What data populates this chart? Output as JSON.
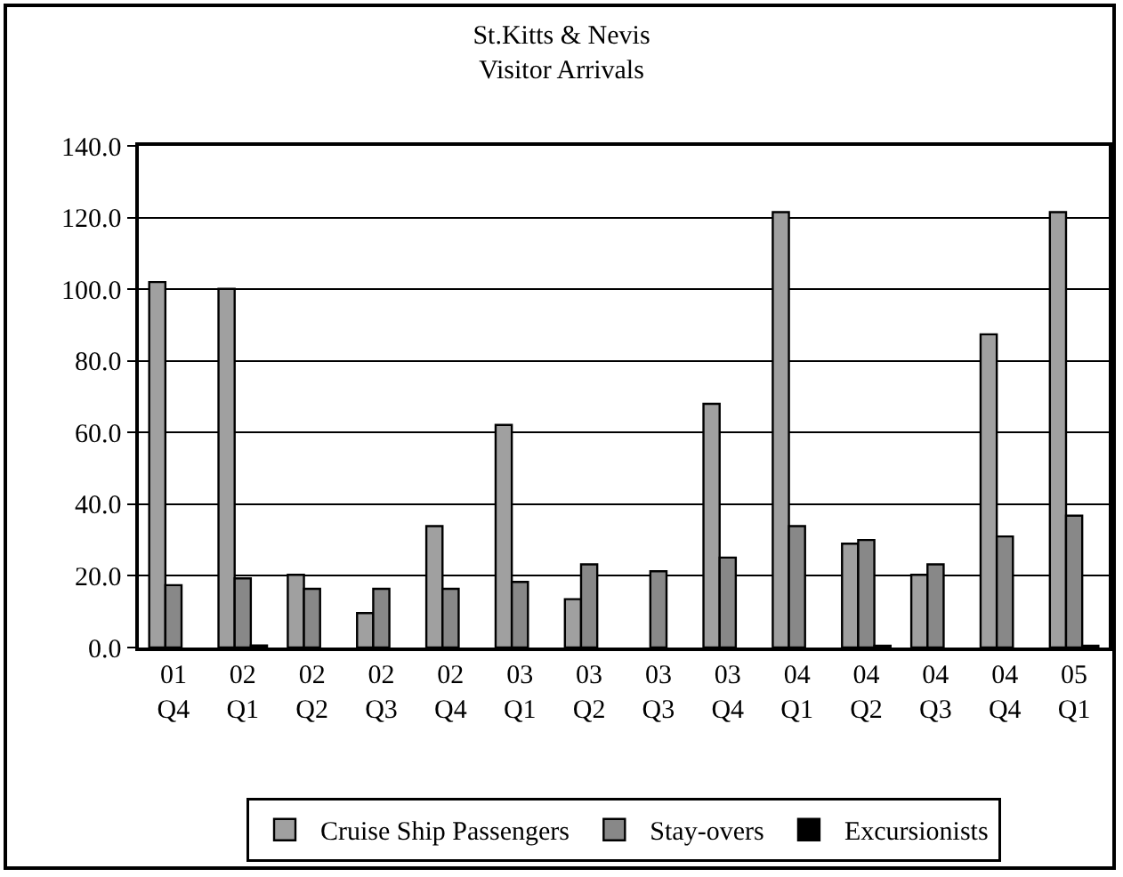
{
  "chart_data": {
    "type": "bar",
    "title": "St.Kitts & Nevis",
    "subtitle": "Visitor Arrivals",
    "categories": [
      "01 Q4",
      "02 Q1",
      "02 Q2",
      "02 Q3",
      "02 Q4",
      "03 Q1",
      "03 Q2",
      "03 Q3",
      "03 Q4",
      "04 Q1",
      "04 Q2",
      "04 Q3",
      "04 Q4",
      "05 Q1"
    ],
    "series": [
      {
        "name": "Cruise Ship Passengers",
        "color": "#a0a0a0",
        "values": [
          102,
          100.1,
          20.3,
          9.6,
          33.9,
          62.1,
          13.5,
          null,
          68,
          121.5,
          29,
          20.3,
          87.4,
          121.5
        ]
      },
      {
        "name": "Stay-overs",
        "color": "#888888",
        "values": [
          17.4,
          19.3,
          16.4,
          16.4,
          16.4,
          18.3,
          23.2,
          21.3,
          25.1,
          33.9,
          30,
          23.2,
          31,
          36.8
        ]
      },
      {
        "name": "Excursionists",
        "color": "#000000",
        "values": [
          null,
          0.6,
          null,
          null,
          null,
          null,
          null,
          null,
          null,
          null,
          0.5,
          null,
          null,
          0.5
        ]
      }
    ],
    "ylim": [
      0,
      140
    ],
    "yticks": [
      {
        "value": 0,
        "label": "0.0"
      },
      {
        "value": 20,
        "label": "20.0"
      },
      {
        "value": 40,
        "label": "40.0"
      },
      {
        "value": 60,
        "label": "60.0"
      },
      {
        "value": 80,
        "label": "80.0"
      },
      {
        "value": 100,
        "label": "100.0"
      },
      {
        "value": 120,
        "label": "120.0"
      },
      {
        "value": 140,
        "label": "140.0"
      }
    ],
    "grid": "y",
    "legend": "bottom"
  }
}
